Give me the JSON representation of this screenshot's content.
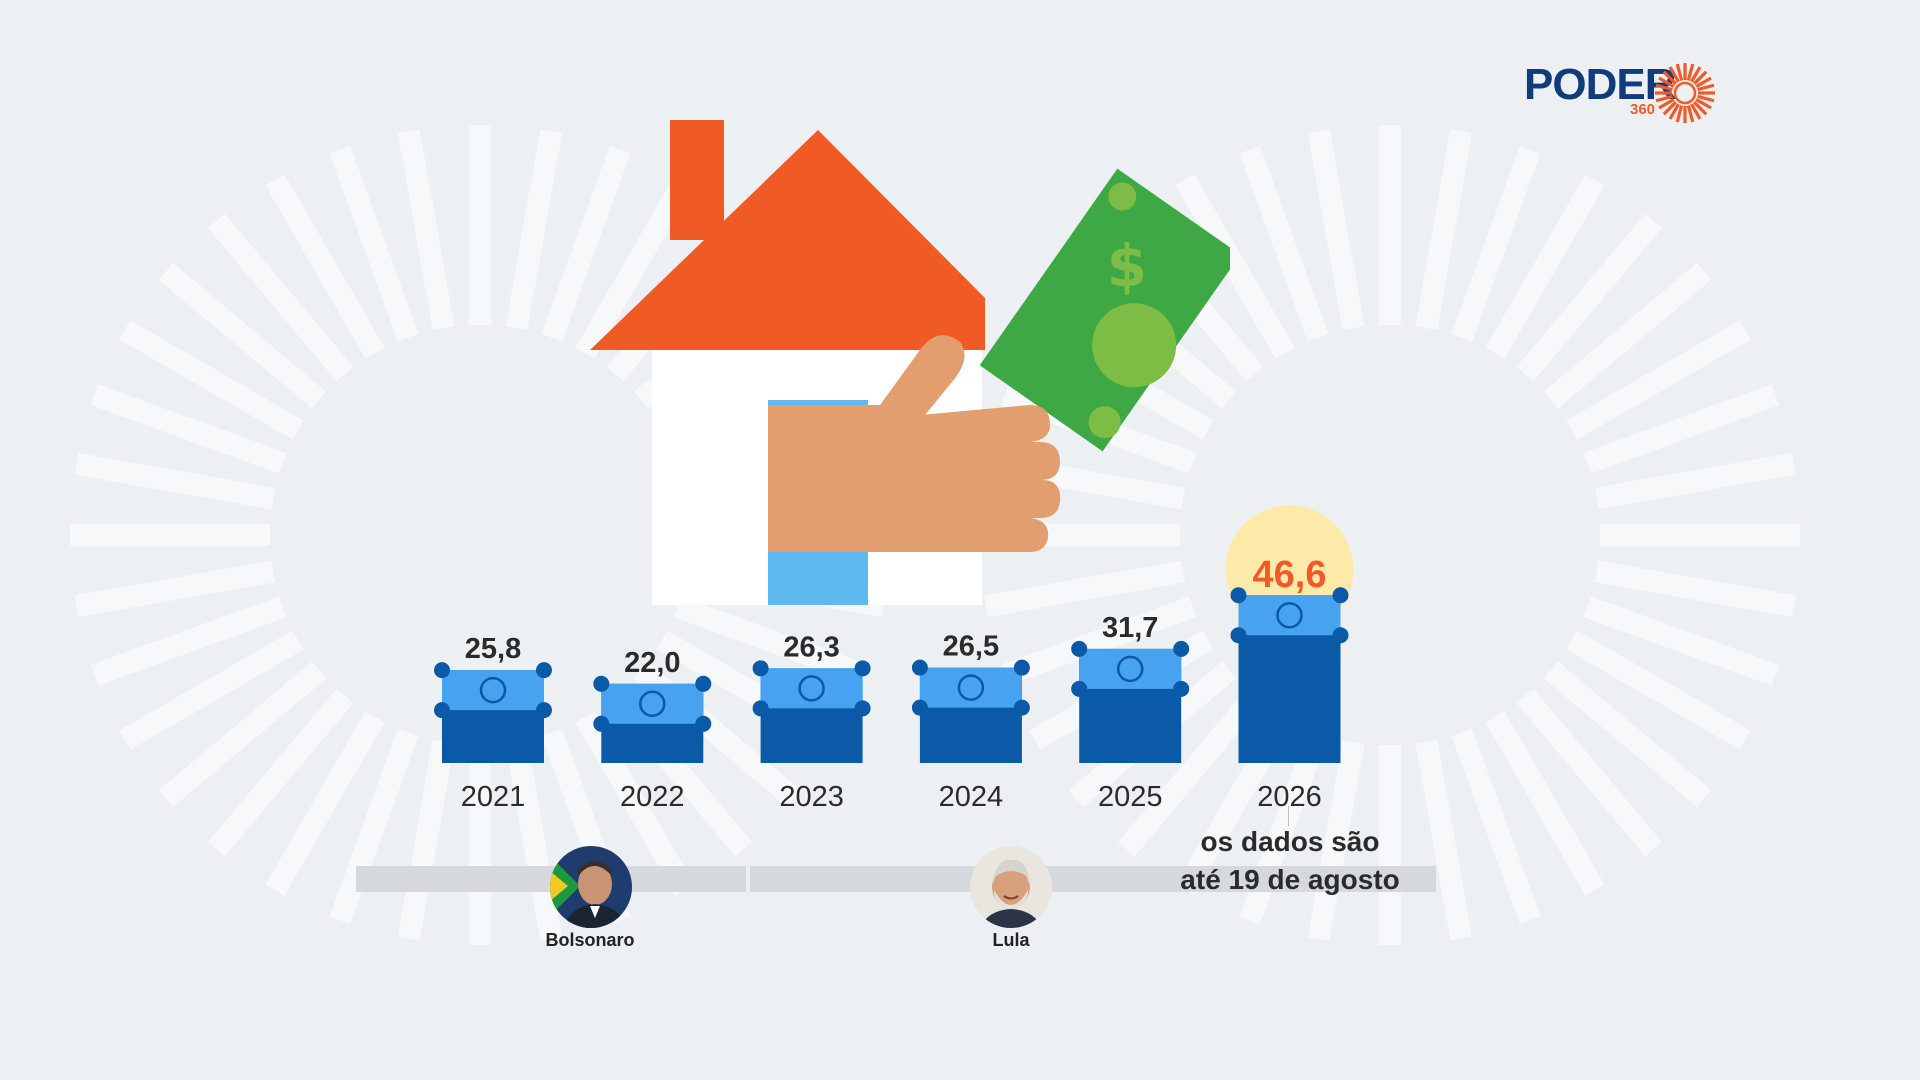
{
  "logo": {
    "word": "PODER",
    "number": "360",
    "brand_color": "#123b7c",
    "accent_color": "#f05a28"
  },
  "chart_data": {
    "type": "bar",
    "categories": [
      "2021",
      "2022",
      "2023",
      "2024",
      "2025",
      "2026"
    ],
    "values": [
      25.8,
      22.0,
      26.3,
      26.5,
      31.7,
      46.6
    ],
    "value_labels": [
      "25,8",
      "22,0",
      "26,3",
      "26,5",
      "31,7",
      "46,6"
    ],
    "highlight_index": 5,
    "colors": {
      "bar_dark": "#0a5aa8",
      "bar_light": "#47a3ef",
      "highlight_text": "#f05a28",
      "highlight_halo": "#fde9a8"
    }
  },
  "note": {
    "line1": "os dados são",
    "line2": "até 19 de agosto"
  },
  "timeline": {
    "people": [
      {
        "name": "Bolsonaro"
      },
      {
        "name": "Lula"
      }
    ]
  },
  "illustration": {
    "icons": [
      "house-icon",
      "hand-icon",
      "banknote-icon"
    ]
  }
}
